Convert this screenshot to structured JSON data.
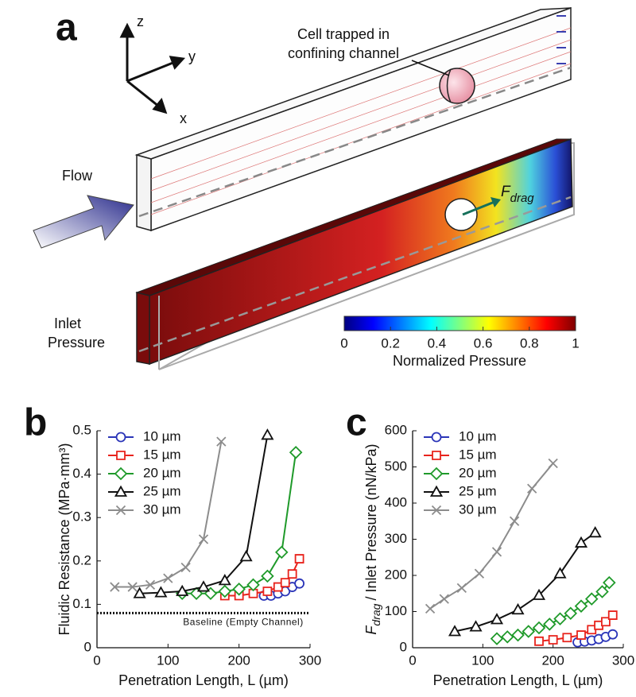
{
  "figure_a": {
    "panel_label": "a",
    "axes_labels": [
      "z",
      "y",
      "x"
    ],
    "cell_label": [
      "Cell trapped in",
      "confining channel"
    ],
    "flow_label": "Flow",
    "force_label": {
      "symbol": "F",
      "subscript": "drag"
    },
    "inlet_label": [
      "Inlet",
      "Pressure"
    ],
    "colorbar": {
      "label": "Normalized Pressure",
      "lim": [
        0,
        1
      ],
      "ticks": [
        0,
        0.2,
        0.4,
        0.6,
        0.8,
        1
      ]
    }
  },
  "chart_data": [
    {
      "type": "line",
      "panel_label": "b",
      "xlabel": "Penetration Length, L (µm)",
      "ylabel": "Fluidic Resistance (MPa·mm³)",
      "xlim": [
        0,
        300
      ],
      "xticks": [
        0,
        100,
        200,
        300
      ],
      "ylim": [
        0,
        0.5
      ],
      "yticks": [
        0,
        0.1,
        0.2,
        0.3,
        0.4,
        0.5
      ],
      "legend": "upper left",
      "baseline": {
        "value": 0.08,
        "label": "Baseline (Empty Channel)"
      },
      "series": [
        {
          "name": "10 µm",
          "color": "#2b35b8",
          "marker": "circle",
          "x": [
            235,
            245,
            255,
            265,
            275,
            285
          ],
          "values": [
            0.12,
            0.12,
            0.125,
            0.13,
            0.14,
            0.148
          ]
        },
        {
          "name": "15 µm",
          "color": "#e8231c",
          "marker": "square",
          "x": [
            180,
            200,
            220,
            240,
            255,
            265,
            275,
            285
          ],
          "values": [
            0.12,
            0.12,
            0.125,
            0.13,
            0.14,
            0.15,
            0.17,
            0.205
          ]
        },
        {
          "name": "20 µm",
          "color": "#1f9a2a",
          "marker": "diamond",
          "x": [
            120,
            140,
            160,
            180,
            200,
            220,
            240,
            260,
            280
          ],
          "values": [
            0.125,
            0.125,
            0.125,
            0.13,
            0.135,
            0.145,
            0.165,
            0.22,
            0.45
          ]
        },
        {
          "name": "25 µm",
          "color": "#111111",
          "marker": "triangle",
          "x": [
            60,
            90,
            120,
            150,
            180,
            210,
            240
          ],
          "values": [
            0.125,
            0.127,
            0.13,
            0.14,
            0.155,
            0.21,
            0.49
          ]
        },
        {
          "name": "30 µm",
          "color": "#8c8c8c",
          "marker": "x",
          "x": [
            25,
            50,
            75,
            100,
            125,
            150,
            175
          ],
          "values": [
            0.14,
            0.14,
            0.145,
            0.16,
            0.185,
            0.25,
            0.475
          ]
        }
      ]
    },
    {
      "type": "line",
      "panel_label": "c",
      "xlabel": "Penetration Length, L (µm)",
      "ylabel": {
        "symbol": "F",
        "subscript": "drag",
        "text": "/ Inlet Pressure (nN/kPa)"
      },
      "xlim": [
        0,
        300
      ],
      "xticks": [
        0,
        100,
        200,
        300
      ],
      "ylim": [
        0,
        600
      ],
      "yticks": [
        0,
        100,
        200,
        300,
        400,
        500,
        600
      ],
      "legend": "upper left",
      "series": [
        {
          "name": "10 µm",
          "color": "#2b35b8",
          "marker": "circle",
          "x": [
            235,
            245,
            255,
            265,
            275,
            285
          ],
          "values": [
            15,
            17,
            20,
            24,
            30,
            37
          ]
        },
        {
          "name": "15 µm",
          "color": "#e8231c",
          "marker": "square",
          "x": [
            180,
            200,
            220,
            240,
            255,
            265,
            275,
            285
          ],
          "values": [
            18,
            22,
            28,
            35,
            50,
            62,
            72,
            90
          ]
        },
        {
          "name": "20 µm",
          "color": "#1f9a2a",
          "marker": "diamond",
          "x": [
            120,
            135,
            150,
            165,
            180,
            195,
            210,
            225,
            240,
            255,
            270,
            280
          ],
          "values": [
            25,
            30,
            35,
            45,
            55,
            65,
            80,
            95,
            115,
            135,
            155,
            180
          ]
        },
        {
          "name": "25 µm",
          "color": "#111111",
          "marker": "triangle",
          "x": [
            60,
            90,
            120,
            150,
            180,
            210,
            240,
            260
          ],
          "values": [
            45,
            58,
            78,
            105,
            145,
            205,
            290,
            318
          ]
        },
        {
          "name": "30 µm",
          "color": "#8c8c8c",
          "marker": "x",
          "x": [
            25,
            45,
            70,
            95,
            120,
            145,
            170,
            200
          ],
          "values": [
            108,
            135,
            165,
            205,
            265,
            350,
            440,
            510
          ]
        }
      ]
    }
  ]
}
